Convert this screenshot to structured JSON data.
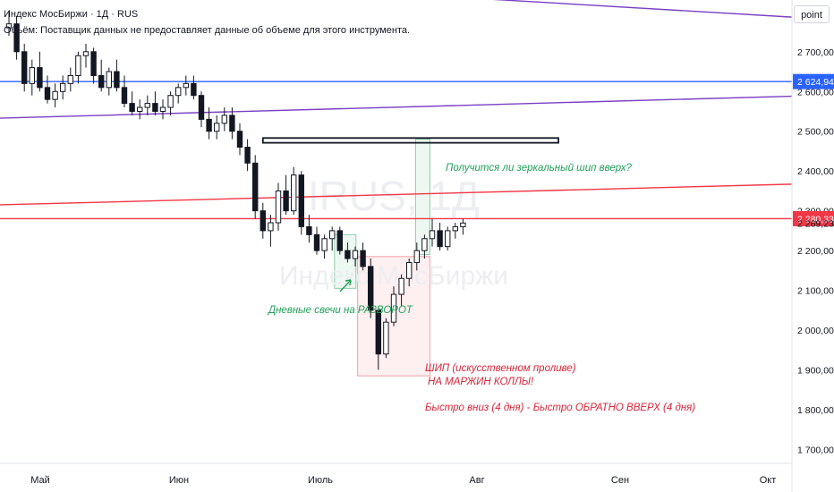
{
  "header": {
    "symbol": "Индекс МосБиржи · 1Д · RUS",
    "volume_note": "Объём: Поставщик данных не предоставляет данные об объеме для этого инструмента."
  },
  "scale_button": "point",
  "watermark": {
    "symbol": "IRUS, 1Д",
    "name": "Индекс МосБиржи"
  },
  "chart_data": {
    "type": "candlestick",
    "x_ticks": [
      "Май",
      "Июн",
      "Июль",
      "Авг",
      "Сен",
      "Окт"
    ],
    "y_ticks": [
      "1 700,00",
      "1 800,00",
      "1 900,00",
      "2 000,00",
      "2 100,00",
      "2 200,00",
      "2 300,00",
      "2 400,00",
      "2 500,00",
      "2 600,00",
      "2 700,00"
    ],
    "y_tick_values": [
      1700,
      1800,
      1900,
      2000,
      2100,
      2200,
      2300,
      2400,
      2500,
      2600,
      2700
    ],
    "ylim": [
      1665,
      2830
    ],
    "price_labels": [
      {
        "text": "2 624,94",
        "value": 2624.94,
        "color": "#2962ff"
      },
      {
        "text": "2 280,33",
        "value": 2280.33,
        "color": "#f23645"
      },
      {
        "text": "2 269,23",
        "value": 2269.23,
        "color": ""
      }
    ],
    "candles": [
      [
        2760,
        2800,
        2740,
        2770
      ],
      [
        2770,
        2790,
        2680,
        2700
      ],
      [
        2700,
        2720,
        2600,
        2620
      ],
      [
        2620,
        2680,
        2590,
        2660
      ],
      [
        2660,
        2700,
        2600,
        2610
      ],
      [
        2610,
        2640,
        2570,
        2580
      ],
      [
        2580,
        2620,
        2560,
        2600
      ],
      [
        2600,
        2640,
        2580,
        2620
      ],
      [
        2620,
        2660,
        2600,
        2640
      ],
      [
        2640,
        2700,
        2620,
        2690
      ],
      [
        2690,
        2720,
        2660,
        2700
      ],
      [
        2700,
        2710,
        2620,
        2640
      ],
      [
        2640,
        2680,
        2600,
        2610
      ],
      [
        2610,
        2660,
        2590,
        2650
      ],
      [
        2650,
        2680,
        2600,
        2610
      ],
      [
        2610,
        2640,
        2560,
        2570
      ],
      [
        2570,
        2600,
        2540,
        2550
      ],
      [
        2550,
        2580,
        2530,
        2560
      ],
      [
        2560,
        2590,
        2540,
        2570
      ],
      [
        2570,
        2600,
        2540,
        2550
      ],
      [
        2550,
        2580,
        2530,
        2560
      ],
      [
        2560,
        2600,
        2540,
        2590
      ],
      [
        2590,
        2620,
        2570,
        2610
      ],
      [
        2610,
        2640,
        2590,
        2620
      ],
      [
        2620,
        2640,
        2580,
        2590
      ],
      [
        2590,
        2600,
        2510,
        2530
      ],
      [
        2530,
        2560,
        2480,
        2500
      ],
      [
        2500,
        2540,
        2480,
        2520
      ],
      [
        2520,
        2560,
        2500,
        2540
      ],
      [
        2540,
        2560,
        2480,
        2500
      ],
      [
        2500,
        2520,
        2440,
        2460
      ],
      [
        2460,
        2480,
        2400,
        2420
      ],
      [
        2420,
        2440,
        2280,
        2300
      ],
      [
        2300,
        2320,
        2230,
        2250
      ],
      [
        2250,
        2290,
        2210,
        2270
      ],
      [
        2270,
        2370,
        2250,
        2350
      ],
      [
        2350,
        2390,
        2290,
        2300
      ],
      [
        2300,
        2410,
        2290,
        2390
      ],
      [
        2390,
        2400,
        2240,
        2260
      ],
      [
        2260,
        2290,
        2220,
        2240
      ],
      [
        2240,
        2260,
        2190,
        2200
      ],
      [
        2200,
        2240,
        2180,
        2230
      ],
      [
        2230,
        2260,
        2200,
        2250
      ],
      [
        2250,
        2260,
        2190,
        2200
      ],
      [
        2200,
        2220,
        2170,
        2180
      ],
      [
        2180,
        2210,
        2160,
        2200
      ],
      [
        2200,
        2220,
        2150,
        2160
      ],
      [
        2160,
        2180,
        2030,
        2050
      ],
      [
        2050,
        2060,
        1900,
        1940
      ],
      [
        1940,
        2030,
        1930,
        2020
      ],
      [
        2020,
        2110,
        2010,
        2090
      ],
      [
        2090,
        2140,
        2060,
        2130
      ],
      [
        2130,
        2180,
        2110,
        2170
      ],
      [
        2170,
        2220,
        2150,
        2200
      ],
      [
        2200,
        2240,
        2180,
        2230
      ],
      [
        2230,
        2280,
        2210,
        2250
      ],
      [
        2250,
        2270,
        2200,
        2210
      ],
      [
        2210,
        2260,
        2200,
        2250
      ],
      [
        2250,
        2270,
        2230,
        2260
      ],
      [
        2260,
        2280,
        2240,
        2269.23
      ]
    ],
    "lines": [
      {
        "name": "",
        "color": "#7b3fc4",
        "from": [
          0.0,
          2905
        ],
        "to": [
          1.0,
          2787
        ]
      },
      {
        "name": "",
        "color": "#7b3fc4",
        "from": [
          0.0,
          2533
        ],
        "to": [
          1.0,
          2588
        ]
      },
      {
        "name": "",
        "color": "#2962ff",
        "from": [
          0.0,
          2624.94
        ],
        "to": [
          1.0,
          2624.94
        ]
      },
      {
        "name": "",
        "color": "#f23645",
        "from": [
          0.0,
          2280.33
        ],
        "to": [
          1.0,
          2280.33
        ]
      },
      {
        "name": "",
        "color": "#f23645",
        "from": [
          0.0,
          2315
        ],
        "to": [
          1.0,
          2367
        ]
      }
    ],
    "annotations": {
      "question": "Получится ли зеркальный шип вверх?",
      "reversal": "Дневные свечи на РАЗВОРОТ",
      "spike_line1": "ШИП (искусственном проливе)",
      "spike_line2": "НА МАРЖИН КОЛЛЫ!",
      "summary": "Быстро вниз (4 дня) - Быстро ОБРАТНО ВВЕРХ (4 дня)"
    },
    "colors": {
      "up": "#ffffff",
      "down": "#131722",
      "green": "#22a05a",
      "red": "#d9263a"
    },
    "grid": false
  }
}
